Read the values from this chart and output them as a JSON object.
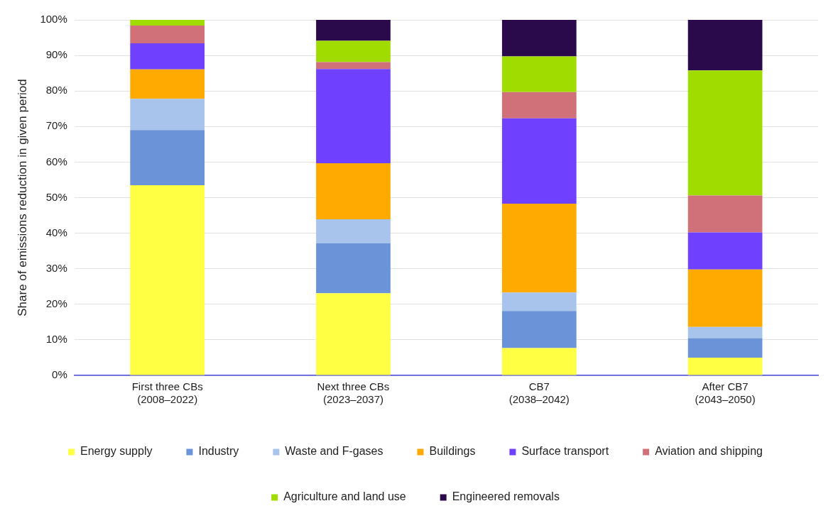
{
  "chart_data": {
    "type": "bar",
    "stacked": true,
    "ylabel": "Share of emissions reduction in given period",
    "categories": [
      "First three CBs\n(2008–2022)",
      "Next three CBs\n(2023–2037)",
      "CB7\n(2038–2042)",
      "After CB7\n(2043–2050)"
    ],
    "series": [
      {
        "name": "Energy supply",
        "color": "#ffff44",
        "values": [
          53.5,
          23.1,
          7.7,
          5.0
        ]
      },
      {
        "name": "Industry",
        "color": "#6a93d8",
        "values": [
          15.5,
          14.1,
          10.4,
          5.5
        ]
      },
      {
        "name": "Waste and F-gases",
        "color": "#a8c4ec",
        "values": [
          8.8,
          6.7,
          5.2,
          3.1
        ]
      },
      {
        "name": "Buildings",
        "color": "#ffaa00",
        "values": [
          8.3,
          15.8,
          25.0,
          16.2
        ]
      },
      {
        "name": "Surface transport",
        "color": "#7040ff",
        "values": [
          7.3,
          26.5,
          24.0,
          10.4
        ]
      },
      {
        "name": "Aviation and shipping",
        "color": "#d07078",
        "values": [
          5.0,
          1.9,
          7.4,
          10.4
        ]
      },
      {
        "name": "Agriculture and land use",
        "color": "#a0dc00",
        "values": [
          1.6,
          6.0,
          10.0,
          35.2
        ]
      },
      {
        "name": "Engineered removals",
        "color": "#2a0a4a",
        "values": [
          0,
          5.9,
          10.3,
          14.2
        ]
      }
    ],
    "ylim": [
      0,
      100
    ],
    "yticks": [
      {
        "value": 0,
        "label": "0%"
      },
      {
        "value": 10,
        "label": "10%"
      },
      {
        "value": 20,
        "label": "20%"
      },
      {
        "value": 30,
        "label": "30%"
      },
      {
        "value": 40,
        "label": "40%"
      },
      {
        "value": 50,
        "label": "50%"
      },
      {
        "value": 60,
        "label": "60%"
      },
      {
        "value": 70,
        "label": "70%"
      },
      {
        "value": 80,
        "label": "80%"
      },
      {
        "value": 90,
        "label": "90%"
      },
      {
        "value": 100,
        "label": "100%"
      }
    ],
    "grid": "y",
    "legend": "bottom"
  }
}
